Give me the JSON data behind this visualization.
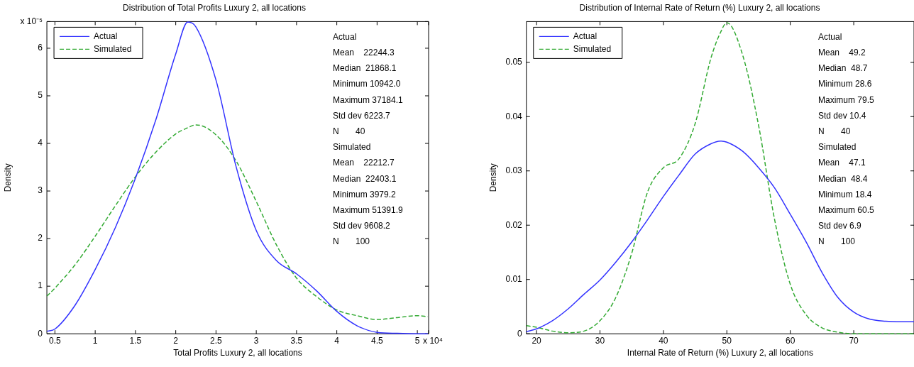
{
  "chart_data": [
    {
      "type": "line",
      "title": "Distribution of Total Profits Luxury 2, all locations",
      "xlabel": "Total Profits Luxury 2, all locations",
      "ylabel": "Density",
      "x": [
        0.4,
        0.5,
        0.75,
        1.0,
        1.25,
        1.5,
        1.75,
        2.0,
        2.15,
        2.25,
        2.5,
        2.75,
        3.0,
        3.25,
        3.5,
        3.75,
        4.0,
        4.25,
        4.5,
        4.75,
        5.0,
        5.13
      ],
      "series": [
        {
          "name": "Actual",
          "color": "#3333ff",
          "line_style": "solid",
          "values": [
            0.05,
            0.1,
            0.6,
            1.35,
            2.23,
            3.27,
            4.48,
            5.88,
            6.55,
            6.45,
            5.33,
            3.51,
            2.17,
            1.54,
            1.26,
            0.9,
            0.47,
            0.17,
            0.03,
            0.01,
            0,
            0
          ]
        },
        {
          "name": "Simulated",
          "color": "#33aa33",
          "line_style": "dashed",
          "values": [
            0.79,
            0.96,
            1.45,
            2.05,
            2.69,
            3.3,
            3.81,
            4.2,
            4.33,
            4.39,
            4.18,
            3.63,
            2.78,
            1.87,
            1.17,
            0.78,
            0.5,
            0.38,
            0.3,
            0.34,
            0.38,
            0.36
          ]
        }
      ],
      "xlim": [
        0.4,
        5.14
      ],
      "ylim": [
        0,
        6.56
      ],
      "xticks": [
        0.5,
        1,
        1.5,
        2,
        2.5,
        3,
        3.5,
        4,
        4.5,
        5,
        {
          "value": 5.14,
          "label": "x 10⁴"
        }
      ],
      "yticks": [
        0,
        1,
        2,
        3,
        4,
        5,
        6,
        {
          "value": 6.56,
          "label": "x 10⁻⁵"
        }
      ],
      "legend": "top left",
      "annotations": [
        "Actual",
        "Mean    22244.3",
        "Median  21868.1",
        "Minimum 10942.0",
        "Maximum 37184.1",
        "Std dev 6223.7",
        "N       40",
        "Simulated",
        "Mean    22212.7",
        "Median  22403.1",
        "Minimum 3979.2",
        "Maximum 51391.9",
        "Std dev 9608.2",
        "N       100"
      ]
    },
    {
      "type": "line",
      "title": "Distribution of Internal Rate of Return (%) Luxury 2, all locations",
      "xlabel": "Internal Rate of Return (%) Luxury 2, all locations",
      "ylabel": "Density",
      "x": [
        18.4,
        20,
        22.5,
        25,
        27.5,
        30,
        32.5,
        35,
        37.5,
        40,
        42.5,
        45,
        47.5,
        49,
        50,
        52.5,
        55,
        57.5,
        60,
        62.5,
        65,
        67.5,
        70,
        72.5,
        75,
        77.5,
        79.5
      ],
      "series": [
        {
          "name": "Actual",
          "color": "#3333ff",
          "line_style": "solid",
          "values": [
            0.0004,
            0.0009,
            0.0024,
            0.0046,
            0.0073,
            0.0099,
            0.0132,
            0.0169,
            0.021,
            0.0253,
            0.0293,
            0.0331,
            0.035,
            0.0355,
            0.0353,
            0.0336,
            0.0306,
            0.0269,
            0.022,
            0.0169,
            0.0113,
            0.0067,
            0.004,
            0.0027,
            0.0023,
            0.0022,
            0.0022
          ]
        },
        {
          "name": "Simulated",
          "color": "#33aa33",
          "line_style": "dashed",
          "values": [
            0.0015,
            0.0012,
            0.0005,
            0.0002,
            0.0005,
            0.0024,
            0.0067,
            0.0148,
            0.0261,
            0.0306,
            0.0323,
            0.0387,
            0.0508,
            0.0555,
            0.0573,
            0.0513,
            0.0384,
            0.0212,
            0.0091,
            0.0035,
            0.0011,
            0.0003,
            0,
            0,
            0,
            0,
            0
          ]
        }
      ],
      "xlim": [
        18.4,
        79.5
      ],
      "ylim": [
        0,
        0.0575
      ],
      "xticks": [
        20,
        30,
        40,
        50,
        60,
        70
      ],
      "yticks": [
        0,
        0.01,
        0.02,
        0.03,
        0.04,
        0.05
      ],
      "legend": "top left",
      "annotations": [
        "Actual",
        "Mean    49.2",
        "Median  48.7",
        "Minimum 28.6",
        "Maximum 79.5",
        "Std dev 10.4",
        "N       40",
        "Simulated",
        "Mean    47.1",
        "Median  48.4",
        "Minimum 18.4",
        "Maximum 60.5",
        "Std dev 6.9",
        "N       100"
      ]
    }
  ]
}
